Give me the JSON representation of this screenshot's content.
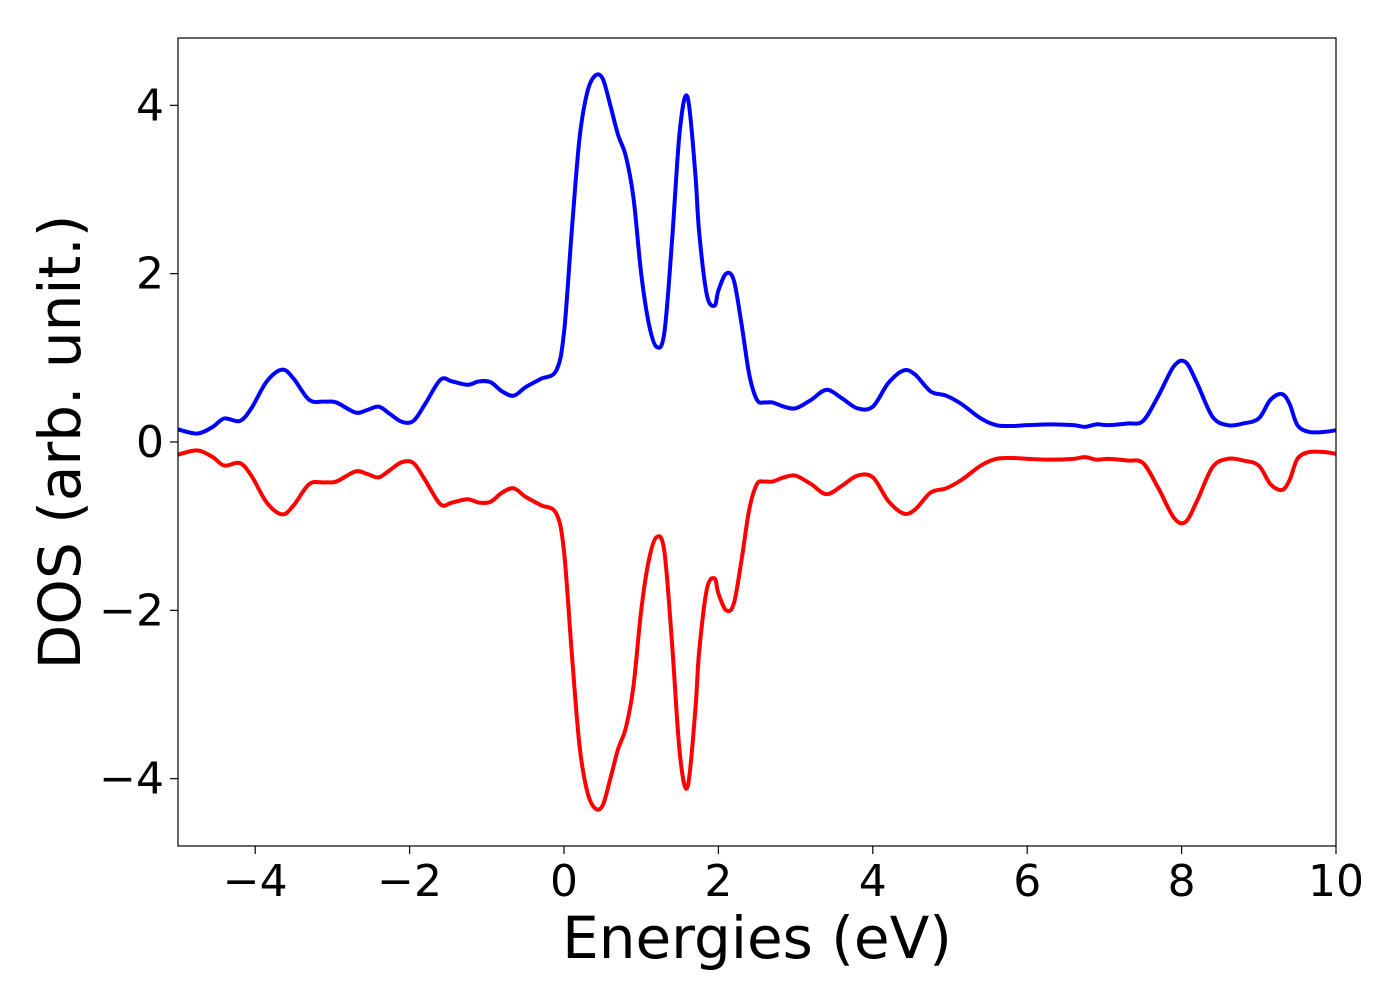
{
  "chart_data": {
    "type": "line",
    "title": "",
    "xlabel": "Energies (eV)",
    "ylabel": "DOS (arb. unit.)",
    "xlim": [
      -5,
      10
    ],
    "ylim": [
      -4.8,
      4.8
    ],
    "x_ticks": [
      -4,
      -2,
      0,
      2,
      4,
      6,
      8,
      10
    ],
    "x_tick_labels": [
      "−4",
      "−2",
      "0",
      "2",
      "4",
      "6",
      "8",
      "10"
    ],
    "y_ticks": [
      -4,
      -2,
      0,
      2,
      4
    ],
    "y_tick_labels": [
      "−4",
      "−2",
      "0",
      "2",
      "4"
    ],
    "grid": false,
    "legend": "none",
    "series": [
      {
        "color": "#0000ff",
        "x": [
          -5.0,
          -4.75,
          -4.55,
          -4.4,
          -4.2,
          -4.05,
          -3.85,
          -3.65,
          -3.5,
          -3.3,
          -3.1,
          -2.95,
          -2.7,
          -2.55,
          -2.4,
          -2.25,
          -2.1,
          -1.95,
          -1.8,
          -1.6,
          -1.45,
          -1.25,
          -1.1,
          -0.95,
          -0.8,
          -0.65,
          -0.5,
          -0.3,
          -0.1,
          0.0,
          0.1,
          0.2,
          0.3,
          0.4,
          0.5,
          0.6,
          0.7,
          0.8,
          0.9,
          1.0,
          1.1,
          1.2,
          1.3,
          1.4,
          1.5,
          1.6,
          1.7,
          1.75,
          1.85,
          1.95,
          2.0,
          2.1,
          2.2,
          2.3,
          2.4,
          2.5,
          2.6,
          2.7,
          2.85,
          3.0,
          3.2,
          3.4,
          3.6,
          3.8,
          4.0,
          4.2,
          4.4,
          4.55,
          4.75,
          4.95,
          5.15,
          5.4,
          5.6,
          5.8,
          6.0,
          6.3,
          6.6,
          6.75,
          6.9,
          7.05,
          7.3,
          7.5,
          7.7,
          7.9,
          8.05,
          8.2,
          8.4,
          8.6,
          8.8,
          9.0,
          9.15,
          9.3,
          9.4,
          9.5,
          9.65,
          9.85,
          10.0
        ],
        "y": [
          0.15,
          0.1,
          0.18,
          0.28,
          0.25,
          0.4,
          0.72,
          0.86,
          0.75,
          0.5,
          0.48,
          0.47,
          0.35,
          0.38,
          0.42,
          0.33,
          0.24,
          0.25,
          0.45,
          0.74,
          0.72,
          0.68,
          0.72,
          0.71,
          0.6,
          0.55,
          0.65,
          0.75,
          0.85,
          1.3,
          2.5,
          3.6,
          4.15,
          4.35,
          4.32,
          4.0,
          3.65,
          3.4,
          2.9,
          2.0,
          1.4,
          1.13,
          1.3,
          2.4,
          3.7,
          4.1,
          3.2,
          2.5,
          1.75,
          1.62,
          1.8,
          2.0,
          1.92,
          1.4,
          0.8,
          0.5,
          0.47,
          0.47,
          0.42,
          0.4,
          0.5,
          0.62,
          0.52,
          0.4,
          0.42,
          0.7,
          0.85,
          0.8,
          0.6,
          0.55,
          0.45,
          0.28,
          0.2,
          0.19,
          0.2,
          0.21,
          0.2,
          0.18,
          0.21,
          0.2,
          0.22,
          0.25,
          0.55,
          0.9,
          0.95,
          0.7,
          0.3,
          0.2,
          0.22,
          0.28,
          0.5,
          0.57,
          0.45,
          0.2,
          0.12,
          0.12,
          0.14
        ]
      },
      {
        "color": "#ff0000",
        "x": [
          -5.0,
          -4.75,
          -4.55,
          -4.4,
          -4.2,
          -4.05,
          -3.85,
          -3.65,
          -3.5,
          -3.3,
          -3.1,
          -2.95,
          -2.7,
          -2.55,
          -2.4,
          -2.25,
          -2.1,
          -1.95,
          -1.8,
          -1.6,
          -1.45,
          -1.25,
          -1.1,
          -0.95,
          -0.8,
          -0.65,
          -0.5,
          -0.3,
          -0.1,
          0.0,
          0.1,
          0.2,
          0.3,
          0.4,
          0.5,
          0.6,
          0.7,
          0.8,
          0.9,
          1.0,
          1.1,
          1.2,
          1.3,
          1.4,
          1.5,
          1.6,
          1.7,
          1.75,
          1.85,
          1.95,
          2.0,
          2.1,
          2.2,
          2.3,
          2.4,
          2.5,
          2.6,
          2.7,
          2.85,
          3.0,
          3.2,
          3.4,
          3.6,
          3.8,
          4.0,
          4.2,
          4.4,
          4.55,
          4.75,
          4.95,
          5.15,
          5.4,
          5.6,
          5.8,
          6.0,
          6.3,
          6.6,
          6.75,
          6.9,
          7.05,
          7.3,
          7.5,
          7.7,
          7.9,
          8.05,
          8.2,
          8.4,
          8.6,
          8.8,
          9.0,
          9.15,
          9.3,
          9.4,
          9.5,
          9.65,
          9.85,
          10.0
        ],
        "y": [
          -0.15,
          -0.1,
          -0.18,
          -0.28,
          -0.25,
          -0.4,
          -0.72,
          -0.86,
          -0.75,
          -0.5,
          -0.48,
          -0.47,
          -0.35,
          -0.38,
          -0.42,
          -0.33,
          -0.24,
          -0.25,
          -0.45,
          -0.74,
          -0.72,
          -0.68,
          -0.72,
          -0.71,
          -0.6,
          -0.55,
          -0.65,
          -0.75,
          -0.85,
          -1.3,
          -2.5,
          -3.6,
          -4.15,
          -4.35,
          -4.32,
          -4.0,
          -3.65,
          -3.4,
          -2.9,
          -2.0,
          -1.4,
          -1.13,
          -1.3,
          -2.4,
          -3.7,
          -4.1,
          -3.2,
          -2.5,
          -1.75,
          -1.62,
          -1.8,
          -2.0,
          -1.92,
          -1.4,
          -0.8,
          -0.5,
          -0.47,
          -0.47,
          -0.42,
          -0.4,
          -0.5,
          -0.62,
          -0.52,
          -0.4,
          -0.42,
          -0.7,
          -0.85,
          -0.8,
          -0.6,
          -0.55,
          -0.45,
          -0.28,
          -0.2,
          -0.19,
          -0.2,
          -0.21,
          -0.2,
          -0.18,
          -0.21,
          -0.2,
          -0.22,
          -0.25,
          -0.55,
          -0.9,
          -0.95,
          -0.7,
          -0.3,
          -0.2,
          -0.22,
          -0.28,
          -0.5,
          -0.57,
          -0.45,
          -0.2,
          -0.12,
          -0.12,
          -0.14
        ]
      }
    ]
  }
}
